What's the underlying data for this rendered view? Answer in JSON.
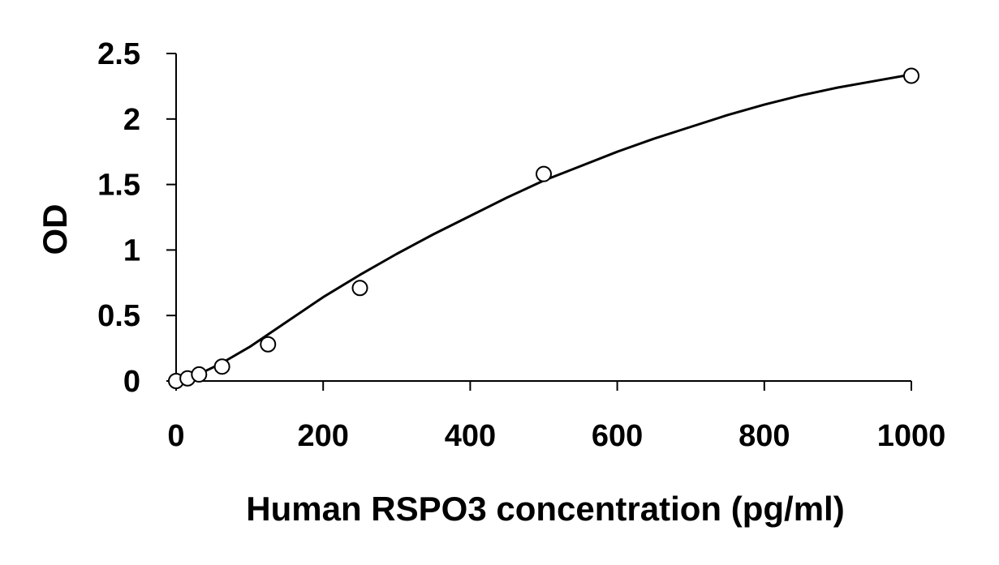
{
  "chart_data": {
    "type": "scatter",
    "title": "",
    "xlabel": "Human RSPO3 concentration (pg/ml)",
    "ylabel": "OD",
    "xlim": [
      0,
      1000
    ],
    "ylim": [
      0,
      2.5
    ],
    "x_ticks": [
      "0",
      "200",
      "400",
      "600",
      "800",
      "1000"
    ],
    "y_ticks": [
      "0",
      "0.5",
      "1",
      "1.5",
      "2",
      "2.5"
    ],
    "grid": false,
    "legend": "none",
    "series": [
      {
        "x": [
          0,
          15.6,
          31.25,
          62.5,
          125,
          250,
          500,
          1000
        ],
        "y": [
          0.0,
          0.02,
          0.05,
          0.11,
          0.28,
          0.71,
          1.58,
          2.33
        ]
      }
    ],
    "fit_curve": {
      "type": "line",
      "x": [
        15,
        30,
        60,
        100,
        150,
        200,
        250,
        300,
        350,
        400,
        450,
        500,
        550,
        600,
        650,
        700,
        750,
        800,
        850,
        900,
        950,
        1000
      ],
      "y": [
        0.02,
        0.05,
        0.13,
        0.26,
        0.45,
        0.64,
        0.81,
        0.97,
        1.12,
        1.26,
        1.4,
        1.53,
        1.64,
        1.75,
        1.85,
        1.94,
        2.03,
        2.11,
        2.18,
        2.24,
        2.29,
        2.34
      ]
    },
    "colors": {
      "marker_stroke": "#000000",
      "marker_fill": "#ffffff",
      "line": "#000000",
      "axis": "#000000"
    }
  }
}
